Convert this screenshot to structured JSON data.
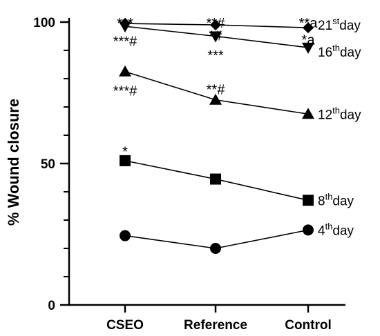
{
  "chart_data": {
    "type": "line",
    "title": "",
    "xlabel": "",
    "ylabel": "% Wound closure",
    "categories": [
      "CSEO",
      "Reference",
      "Control"
    ],
    "ylim": [
      0,
      100
    ],
    "yticks": [
      0,
      50,
      100
    ],
    "yticks_minor": [
      10,
      20,
      30,
      40,
      60,
      70,
      80,
      90
    ],
    "grid": false,
    "legend": "none",
    "series": [
      {
        "name": "4",
        "suffix": "th",
        "tail": "day",
        "marker": "circle",
        "values": [
          24.5,
          20,
          26.5
        ]
      },
      {
        "name": "8",
        "suffix": "th",
        "tail": "day",
        "marker": "square",
        "values": [
          51,
          44.5,
          37
        ]
      },
      {
        "name": "12",
        "suffix": "th",
        "tail": "day",
        "marker": "triangle-up",
        "values": [
          82.5,
          72.5,
          67.5
        ]
      },
      {
        "name": "16",
        "suffix": "th",
        "tail": "day",
        "marker": "triangle-down",
        "values": [
          98.5,
          95,
          91
        ]
      },
      {
        "name": "21",
        "suffix": "st",
        "tail": "day",
        "marker": "diamond",
        "values": [
          99.5,
          99,
          98
        ]
      }
    ],
    "annotations": [
      {
        "text": "***",
        "category": "CSEO",
        "y": 100.5
      },
      {
        "text": "***#",
        "category": "CSEO",
        "y": 94
      },
      {
        "text": "***#",
        "category": "CSEO",
        "y": 76.5
      },
      {
        "text": "*",
        "category": "CSEO",
        "y": 55
      },
      {
        "text": "**#",
        "category": "Reference",
        "y": 100.5
      },
      {
        "text": "*#",
        "category": "Reference",
        "y": 96
      },
      {
        "text": "***",
        "category": "Reference",
        "y": 89
      },
      {
        "text": "**#",
        "category": "Reference",
        "y": 77
      },
      {
        "text": "**a",
        "category": "Control",
        "y": 100.5
      },
      {
        "text": "*a",
        "category": "Control",
        "y": 94.5
      }
    ]
  }
}
